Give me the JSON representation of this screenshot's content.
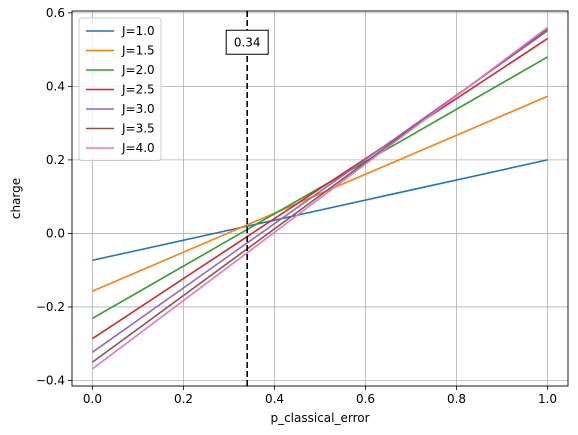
{
  "chart_data": {
    "type": "line",
    "title": "",
    "xlabel": "p_classical_error",
    "ylabel": "charge",
    "xlim": [
      -0.045,
      1.045
    ],
    "ylim": [
      -0.415,
      0.605
    ],
    "xticks": [
      0.0,
      0.2,
      0.4,
      0.6,
      0.8,
      1.0
    ],
    "xtick_labels": [
      "0.0",
      "0.2",
      "0.4",
      "0.6",
      "0.8",
      "1.0"
    ],
    "yticks": [
      -0.4,
      -0.2,
      0.0,
      0.2,
      0.4,
      0.6
    ],
    "ytick_labels": [
      "−0.4",
      "−0.2",
      "0.0",
      "0.2",
      "0.4",
      "0.6"
    ],
    "grid": true,
    "legend_position": "top-left",
    "x": [
      0.0,
      1.0
    ],
    "series": [
      {
        "name": "J=1.0",
        "color": "#1f77b4",
        "values": [
          -0.073,
          0.2
        ]
      },
      {
        "name": "J=1.5",
        "color": "#ff7f0e",
        "values": [
          -0.157,
          0.373
        ]
      },
      {
        "name": "J=2.0",
        "color": "#2ca02c",
        "values": [
          -0.231,
          0.48
        ]
      },
      {
        "name": "J=2.5",
        "color": "#d62728",
        "values": [
          -0.286,
          0.53
        ]
      },
      {
        "name": "J=3.0",
        "color": "#9467bd",
        "values": [
          -0.323,
          0.551
        ]
      },
      {
        "name": "J=3.5",
        "color": "#8c564b",
        "values": [
          -0.35,
          0.556
        ]
      },
      {
        "name": "J=4.0",
        "color": "#e377c2",
        "values": [
          -0.368,
          0.56
        ]
      }
    ],
    "vline": {
      "x": 0.34,
      "color": "#000000",
      "style": "dashed"
    },
    "annotation": {
      "text": "0.34",
      "x": 0.34,
      "y": 0.52
    }
  }
}
